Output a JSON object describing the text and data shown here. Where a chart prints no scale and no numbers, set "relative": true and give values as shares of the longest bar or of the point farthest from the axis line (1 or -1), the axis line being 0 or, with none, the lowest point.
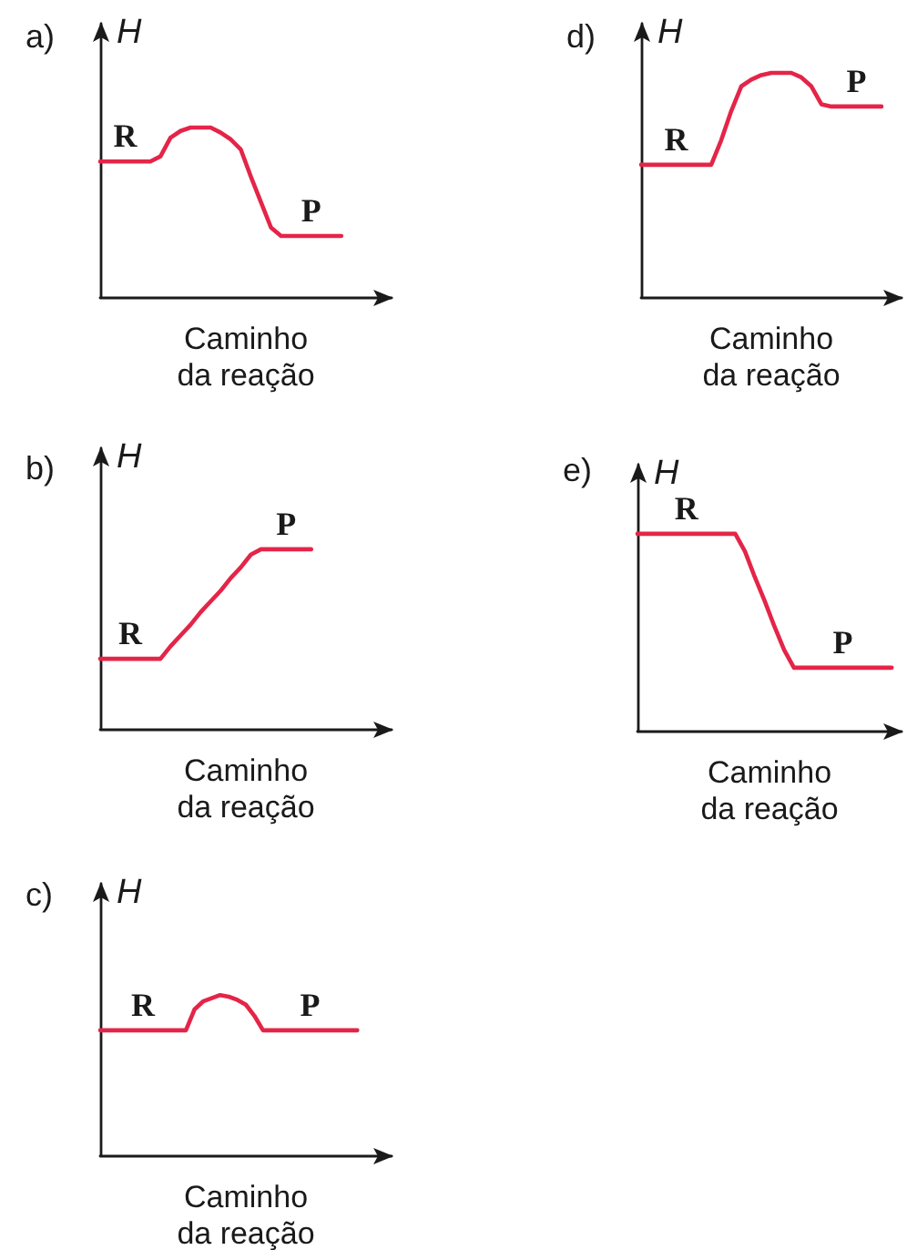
{
  "chart_data": [
    {
      "type": "line",
      "title": "a)",
      "xlabel": "Caminho da reação",
      "ylabel": "H",
      "relative": true,
      "marker": "none",
      "color": "#e42548",
      "categories": [
        null,
        null,
        null,
        null,
        null,
        null,
        null,
        null,
        null,
        null,
        null,
        null,
        null,
        null,
        null,
        null,
        null,
        null,
        null,
        null,
        null,
        null,
        null,
        null,
        null
      ],
      "values": [
        0.8,
        0.8,
        0.8,
        0.8,
        0.8,
        0.8,
        0.83,
        0.94,
        0.98,
        1,
        1,
        1,
        0.97,
        0.93,
        0.87,
        0.71,
        0.56,
        0.41,
        0.36,
        0.36,
        0.36,
        0.36,
        0.36,
        0.36,
        0.36
      ],
      "annotations": [
        {
          "text": "R",
          "y": 0.8
        },
        {
          "text": "P",
          "y": 0.36
        }
      ]
    },
    {
      "type": "line",
      "title": "b)",
      "xlabel": "Caminho da reação",
      "ylabel": "H",
      "relative": true,
      "marker": "none",
      "color": "#e42548",
      "categories": [
        null,
        null,
        null,
        null,
        null,
        null,
        null,
        null,
        null,
        null,
        null,
        null,
        null,
        null,
        null,
        null,
        null,
        null,
        null,
        null,
        null,
        null
      ],
      "values": [
        0.39,
        0.39,
        0.39,
        0.39,
        0.39,
        0.39,
        0.39,
        0.46,
        0.52,
        0.58,
        0.65,
        0.71,
        0.77,
        0.84,
        0.9,
        0.97,
        1,
        1,
        1,
        1,
        1,
        1
      ],
      "annotations": [
        {
          "text": "R",
          "y": 0.39
        },
        {
          "text": "P",
          "y": 1
        }
      ]
    },
    {
      "type": "line",
      "title": "c)",
      "xlabel": "Caminho da reação",
      "ylabel": "H",
      "relative": true,
      "marker": "none",
      "color": "#e42548",
      "categories": [
        null,
        null,
        null,
        null,
        null,
        null,
        null,
        null,
        null,
        null,
        null,
        null,
        null,
        null,
        null,
        null,
        null,
        null,
        null,
        null,
        null,
        null,
        null,
        null,
        null,
        null,
        null,
        null,
        null,
        null,
        null
      ],
      "values": [
        0.78,
        0.78,
        0.78,
        0.78,
        0.78,
        0.78,
        0.78,
        0.78,
        0.78,
        0.78,
        0.78,
        0.91,
        0.96,
        0.98,
        1,
        0.99,
        0.97,
        0.94,
        0.87,
        0.78,
        0.78,
        0.78,
        0.78,
        0.78,
        0.78,
        0.78,
        0.78,
        0.78,
        0.78,
        0.78,
        0.78
      ],
      "annotations": [
        {
          "text": "R",
          "y": 0.78
        },
        {
          "text": "P",
          "y": 0.78
        }
      ]
    },
    {
      "type": "line",
      "title": "d)",
      "xlabel": "Caminho da reação",
      "ylabel": "H",
      "relative": true,
      "marker": "none",
      "color": "#e42548",
      "categories": [
        null,
        null,
        null,
        null,
        null,
        null,
        null,
        null,
        null,
        null,
        null,
        null,
        null,
        null,
        null,
        null,
        null,
        null,
        null,
        null,
        null,
        null,
        null,
        null,
        null
      ],
      "values": [
        0.59,
        0.59,
        0.59,
        0.59,
        0.59,
        0.59,
        0.59,
        0.59,
        0.7,
        0.83,
        0.94,
        0.97,
        0.99,
        1,
        1,
        1,
        0.98,
        0.94,
        0.86,
        0.85,
        0.85,
        0.85,
        0.85,
        0.85,
        0.85
      ],
      "annotations": [
        {
          "text": "R",
          "y": 0.59
        },
        {
          "text": "P",
          "y": 0.85
        }
      ]
    },
    {
      "type": "line",
      "title": "e)",
      "xlabel": "Caminho da reação",
      "ylabel": "H",
      "relative": true,
      "marker": "none",
      "color": "#e42548",
      "categories": [
        null,
        null,
        null,
        null,
        null,
        null,
        null,
        null,
        null,
        null,
        null,
        null,
        null,
        null,
        null,
        null,
        null,
        null,
        null,
        null,
        null,
        null,
        null,
        null,
        null,
        null,
        null
      ],
      "values": [
        1,
        1,
        1,
        1,
        1,
        1,
        1,
        1,
        1,
        1,
        1,
        0.91,
        0.78,
        0.66,
        0.53,
        0.41,
        0.32,
        0.32,
        0.32,
        0.32,
        0.32,
        0.32,
        0.32,
        0.32,
        0.32,
        0.32,
        0.32
      ],
      "annotations": [
        {
          "text": "R",
          "y": 1
        },
        {
          "text": "P",
          "y": 0.32
        }
      ]
    }
  ]
}
